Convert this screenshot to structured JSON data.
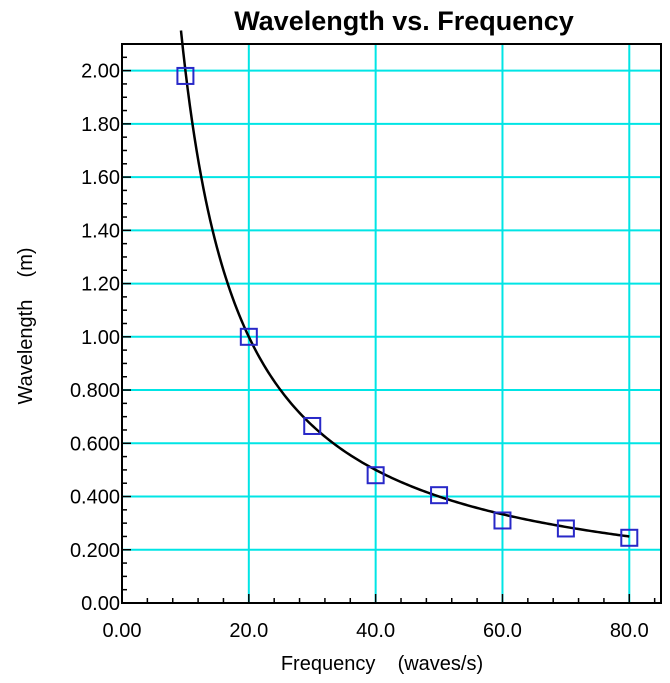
{
  "chart_data": {
    "type": "scatter",
    "title": "Wavelength vs. Frequency",
    "xlabel": "Frequency    (waves/s)",
    "ylabel": "Wavelength    (m)",
    "xlim": [
      0,
      85
    ],
    "ylim": [
      0,
      2.1
    ],
    "x_ticks": [
      0,
      20,
      40,
      60,
      80
    ],
    "x_tick_labels": [
      "0.00",
      "20.0",
      "40.0",
      "60.0",
      "80.0"
    ],
    "y_ticks": [
      0,
      0.2,
      0.4,
      0.6,
      0.8,
      1.0,
      1.2,
      1.4,
      1.6,
      1.8,
      2.0
    ],
    "y_tick_labels": [
      "0.00",
      "0.200",
      "0.400",
      "0.600",
      "0.800",
      "1.00",
      "1.20",
      "1.40",
      "1.60",
      "1.80",
      "2.00"
    ],
    "grid": true,
    "series": [
      {
        "marker": "square",
        "color": "#2828c8",
        "x": [
          10,
          20,
          30,
          40,
          50,
          60,
          70,
          80
        ],
        "y": [
          1.98,
          1.0,
          0.665,
          0.48,
          0.405,
          0.31,
          0.28,
          0.245
        ]
      }
    ],
    "fit": {
      "type": "reciprocal",
      "coefficient": 20,
      "x_range": [
        9.3,
        80
      ],
      "color": "#000000"
    },
    "colors": {
      "grid": "#00e5e5",
      "marker": "#2828c8",
      "curve": "#000000",
      "axes": "#000000"
    }
  }
}
